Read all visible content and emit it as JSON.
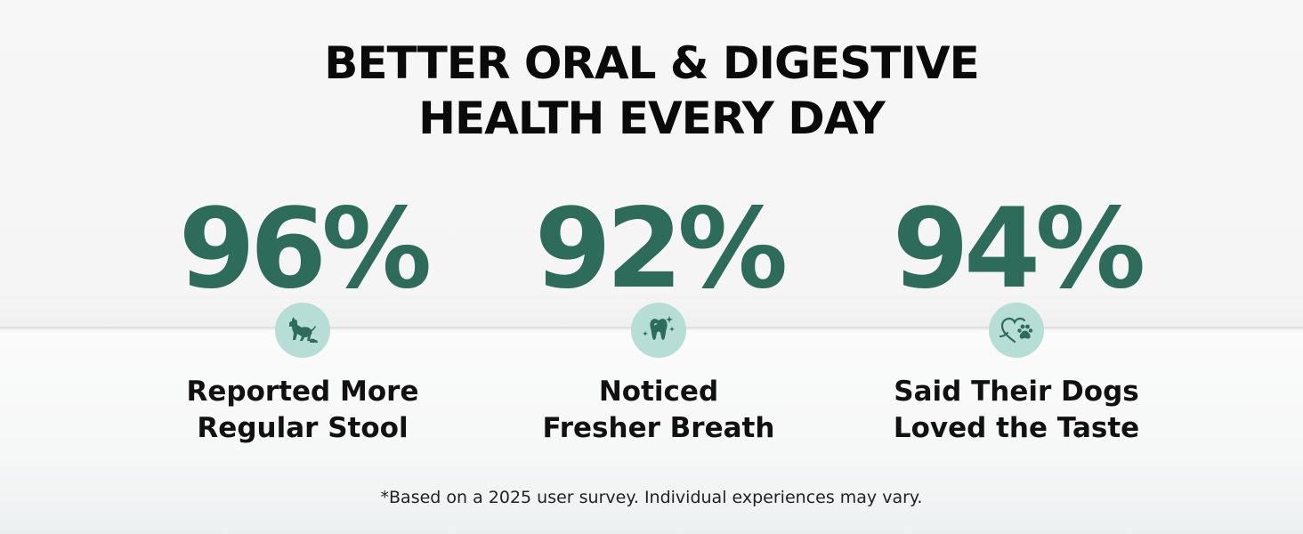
{
  "headline": {
    "line1": "BETTER ORAL & DIGESTIVE",
    "line2": "HEALTH EVERY DAY"
  },
  "stats": [
    {
      "value": "96%",
      "icon": "dog-stool-icon",
      "caption_line1": "Reported More",
      "caption_line2": "Regular Stool"
    },
    {
      "value": "92%",
      "icon": "sparkling-tooth-icon",
      "caption_line1": "Noticed",
      "caption_line2": "Fresher Breath"
    },
    {
      "value": "94%",
      "icon": "heart-paw-icon",
      "caption_line1": "Said Their Dogs",
      "caption_line2": "Loved the Taste"
    }
  ],
  "footnote": "*Based on a 2025 user survey. Individual experiences may vary.",
  "colors": {
    "accent": "#2d6b5b",
    "icon_background": "#b6ded6",
    "text": "#0a0a0a"
  }
}
